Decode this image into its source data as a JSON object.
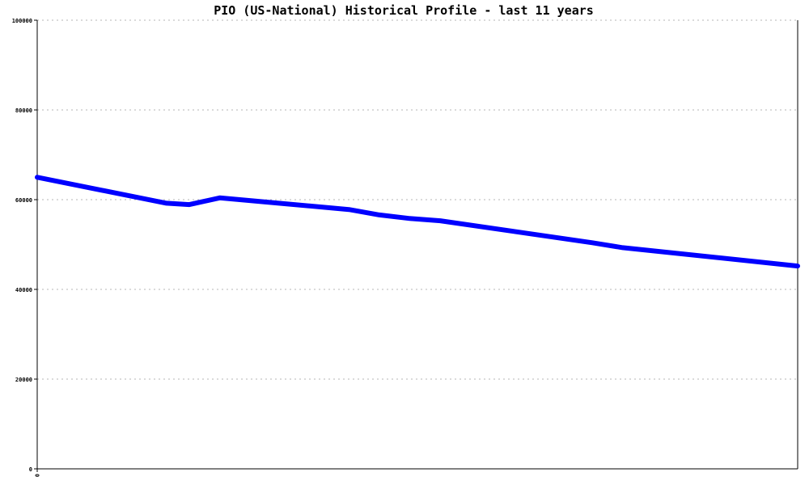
{
  "chart_data": {
    "type": "line",
    "title": "PIO (US-National) Historical Profile - last 11 years",
    "xlabel": "",
    "ylabel": "",
    "ylim": [
      0,
      100000
    ],
    "y_ticks": [
      "0",
      "20000",
      "40000",
      "60000",
      "80000",
      "100000"
    ],
    "x_ticks": [
      "0"
    ],
    "grid": true,
    "x": [
      0,
      17,
      20,
      24,
      41,
      45,
      49,
      53,
      73,
      77,
      100
    ],
    "series": [
      {
        "color": "#0000ff",
        "values": [
          65000,
          59200,
          58900,
          60400,
          57800,
          56600,
          55800,
          55300,
          50400,
          49300,
          45200
        ]
      }
    ]
  }
}
